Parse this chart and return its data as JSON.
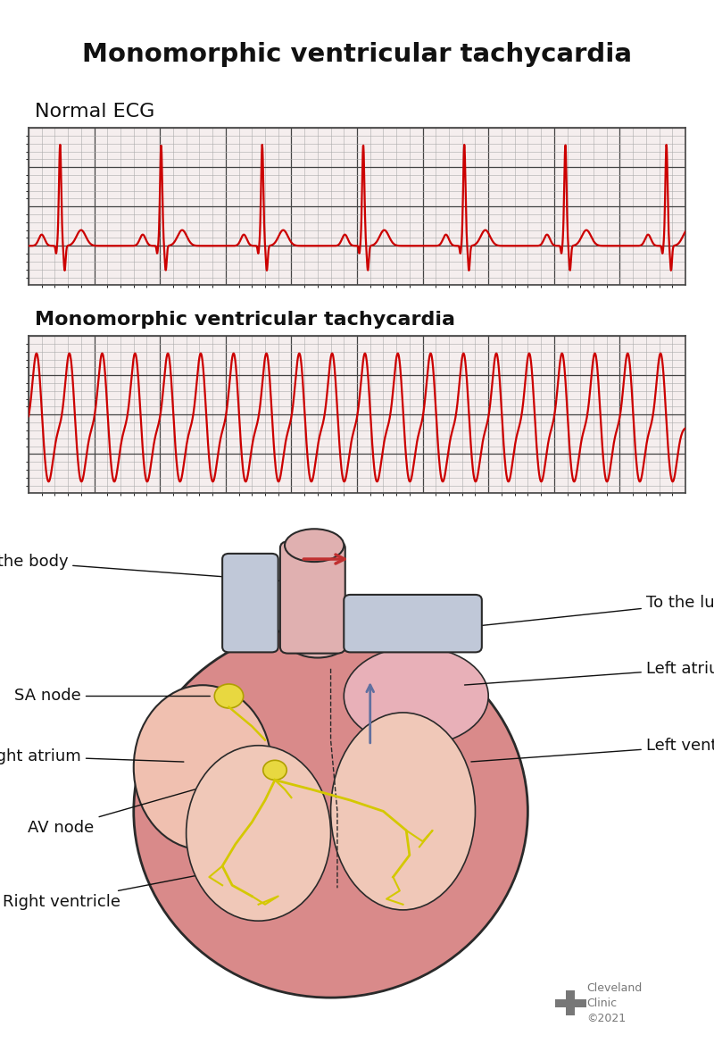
{
  "title": "Monomorphic ventricular tachycardia",
  "title_fontsize": 21,
  "title_fontweight": "bold",
  "ecg_label1": "Normal ECG",
  "ecg_label2": "Monomorphic ventricular tachycardia",
  "ecg_label_fontsize": 16,
  "ecg_label2_fontweight": "bold",
  "ecg_color": "#cc0000",
  "grid_color_major": "#444444",
  "grid_color_minor": "#aaaaaa",
  "bg_color": "#ffffff",
  "heart_label_fontsize": 13,
  "cleveland_text": "Cleveland\nClinic\n©2021",
  "cleveland_logo_color": "#777777"
}
